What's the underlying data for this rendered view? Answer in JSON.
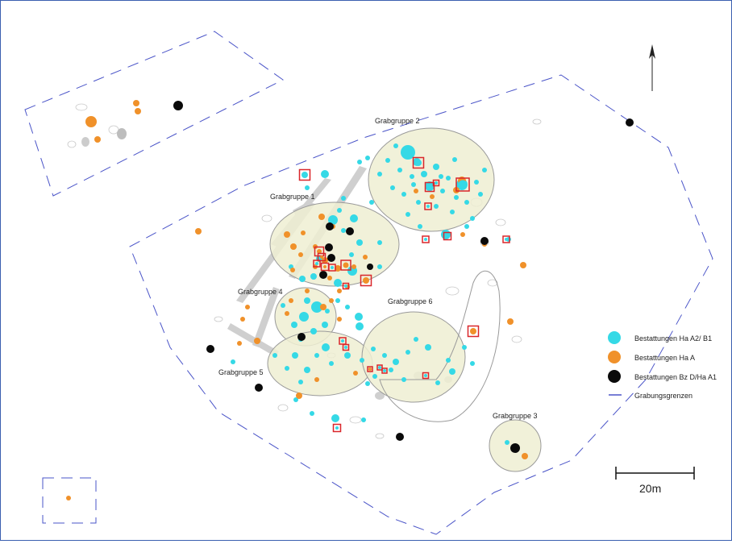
{
  "colors": {
    "cyan": "#35d9e6",
    "orange": "#f0912a",
    "black": "#0a0a0a",
    "boundary": "#4a54c8",
    "group_fill": "#efeed2",
    "group_stroke": "#9a9a9a",
    "marker": "#d9262a"
  },
  "groups": [
    {
      "label": "Grabgruppe 1"
    },
    {
      "label": "Grabgruppe 2"
    },
    {
      "label": "Grabgruppe 3"
    },
    {
      "label": "Grabgruppe 4"
    },
    {
      "label": "Grabgruppe 5"
    },
    {
      "label": "Grabgruppe 6"
    }
  ],
  "legend": {
    "items": [
      {
        "label": "Bestattungen Ha A2/ B1",
        "symbol": "cyan-dot"
      },
      {
        "label": "Bestattungen Ha A",
        "symbol": "orange-dot"
      },
      {
        "label": "Bestattungen Bz D/Ha A1",
        "symbol": "black-dot"
      },
      {
        "label": "Grabungsgrenzen",
        "symbol": "boundary-line"
      }
    ]
  },
  "scale": {
    "label": "20m"
  },
  "north_arrow": {
    "icon": "north-arrow-icon"
  }
}
